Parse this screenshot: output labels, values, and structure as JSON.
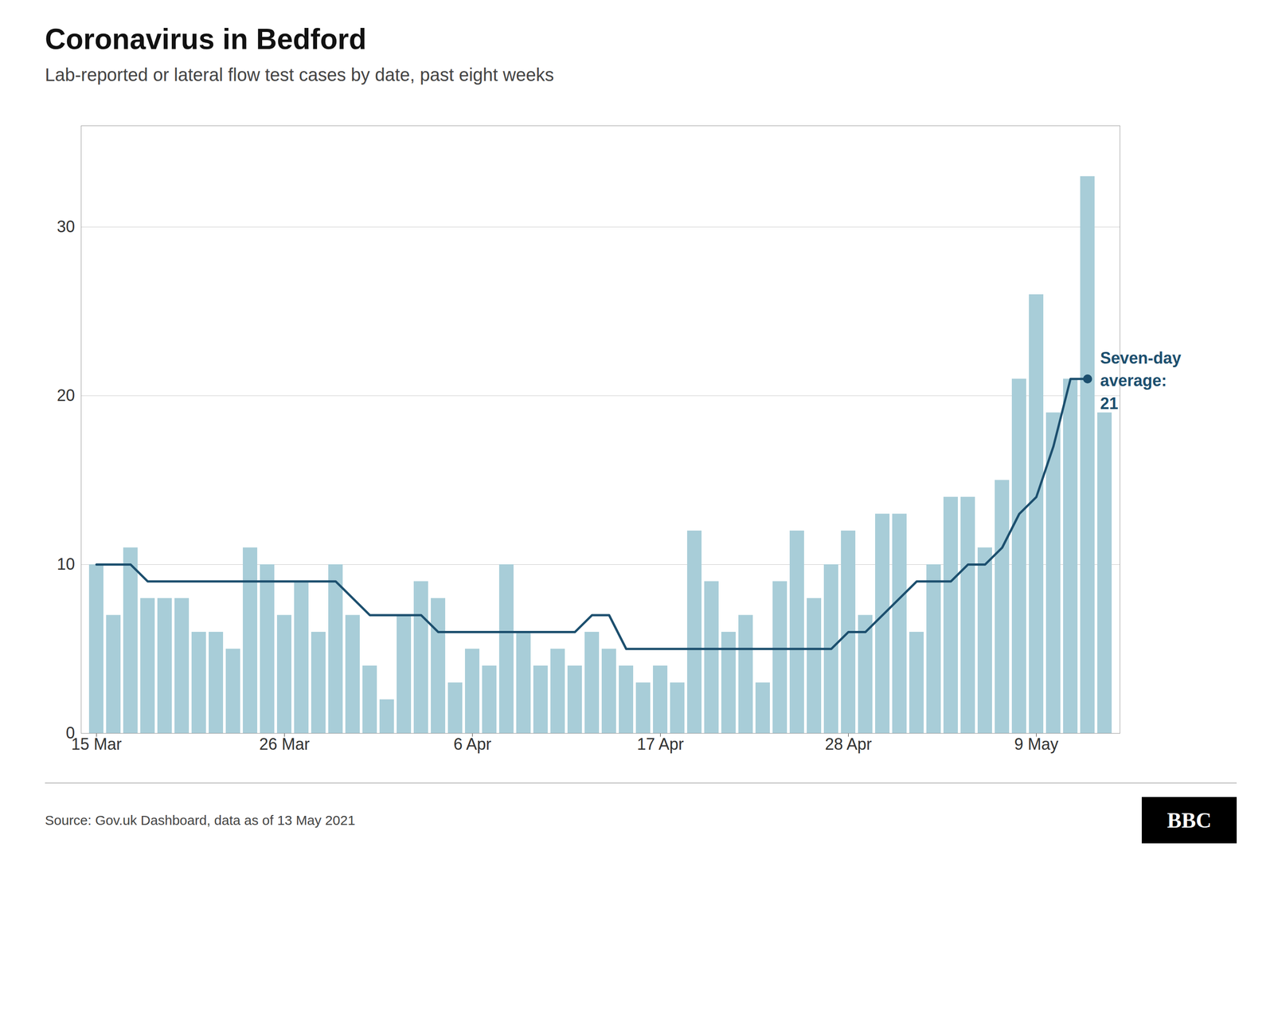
{
  "chart_data": {
    "type": "bar",
    "title": "Coronavirus in Bedford",
    "subtitle": "Lab-reported or lateral flow test cases by date, past eight weeks",
    "caption": "Source: Gov.uk Dashboard, data as of 13 May 2021",
    "logo": "BBC",
    "annotation": "Seven-day\naverage:\n21",
    "categories": [
      "15 Mar",
      null,
      null,
      null,
      null,
      null,
      null,
      null,
      null,
      null,
      null,
      "26 Mar",
      null,
      null,
      null,
      null,
      null,
      null,
      null,
      null,
      null,
      null,
      "6 Apr",
      null,
      null,
      null,
      null,
      null,
      null,
      null,
      null,
      null,
      null,
      "17 Apr",
      null,
      null,
      null,
      null,
      null,
      null,
      null,
      null,
      null,
      null,
      "28 Apr",
      null,
      null,
      null,
      null,
      null,
      null,
      null,
      null,
      null,
      null,
      "9 May",
      null,
      null,
      null,
      null
    ],
    "series": [
      {
        "type": "bar",
        "color": "#a8cdd8",
        "values": [
          10,
          7,
          11,
          8,
          8,
          8,
          6,
          6,
          5,
          11,
          10,
          7,
          9,
          6,
          10,
          7,
          4,
          2,
          7,
          9,
          8,
          3,
          5,
          4,
          10,
          6,
          4,
          5,
          4,
          6,
          5,
          4,
          3,
          4,
          3,
          12,
          9,
          6,
          7,
          3,
          9,
          12,
          8,
          10,
          12,
          7,
          13,
          13,
          6,
          10,
          14,
          14,
          11,
          15,
          21,
          26,
          19,
          21,
          33,
          19
        ]
      },
      {
        "type": "line",
        "color": "#1c4f6e",
        "values": [
          10,
          10,
          10,
          9,
          9,
          9,
          9,
          9,
          9,
          9,
          9,
          9,
          9,
          9,
          9,
          8,
          7,
          7,
          7,
          7,
          6,
          6,
          6,
          6,
          6,
          6,
          6,
          6,
          6,
          7,
          7,
          5,
          5,
          5,
          5,
          5,
          5,
          5,
          5,
          5,
          5,
          5,
          5,
          5,
          6,
          6,
          7,
          8,
          9,
          9,
          9,
          10,
          10,
          11,
          13,
          14,
          17,
          21,
          21,
          null
        ]
      }
    ],
    "ylim": [
      0,
      36
    ],
    "yticks": [
      0,
      10,
      20,
      30
    ],
    "grid": true
  }
}
